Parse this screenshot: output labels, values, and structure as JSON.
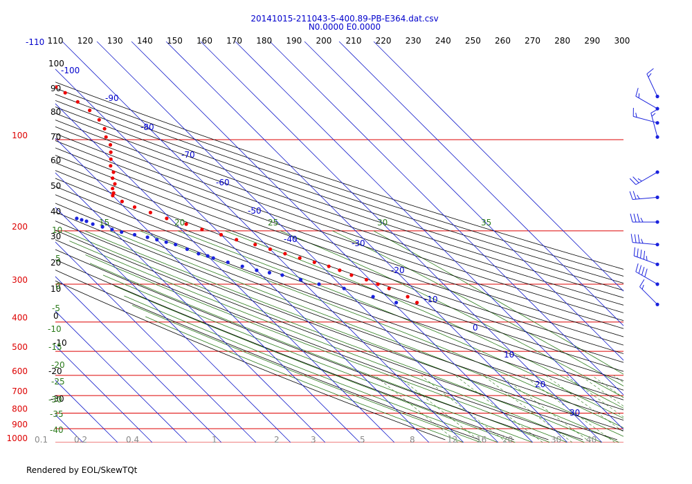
{
  "chart_data": {
    "type": "scatter",
    "title": "20141015-211043-5-400.89-PB-E364.dat.csv",
    "subtitle": "N0.0000 E0.0000",
    "top_axis_ticks": [
      110,
      120,
      130,
      140,
      150,
      160,
      170,
      180,
      190,
      200,
      210,
      220,
      230,
      240,
      250,
      260,
      270,
      280,
      290,
      300
    ],
    "top_axis_extra": "-110",
    "pressure_ticks": [
      100,
      200,
      300,
      400,
      500,
      600,
      700,
      800,
      900,
      1000
    ],
    "isotherm_labels": [
      10,
      0,
      -10,
      -20,
      -30,
      -40,
      -50,
      -60,
      -70,
      -80,
      -90,
      -100
    ],
    "dry_adiabat_labels": [
      100,
      90,
      80,
      70,
      60,
      50,
      40,
      30,
      20,
      10,
      0,
      -10,
      -20,
      -30
    ],
    "moist_adiabat_labels": [
      10,
      5,
      0,
      -5,
      -10,
      -15,
      -20,
      -25,
      -30,
      -35,
      -40,
      15,
      20,
      25,
      30,
      35
    ],
    "mixing_ratio_labels": [
      "0.1",
      "0.2",
      "0.4",
      "1",
      "2",
      "3",
      "5",
      "8",
      "12",
      "16",
      "20",
      "30",
      "40"
    ],
    "series": [
      {
        "color": "#ee0000",
        "x": [
          -13,
          -14,
          -17,
          -19,
          -21,
          -24,
          -26,
          -28,
          -31,
          -34,
          -37,
          -40,
          -43,
          -47,
          -50,
          -54,
          -57,
          -61,
          -64,
          -67,
          -69,
          -70,
          -69,
          -68,
          -66,
          -65,
          -63,
          -62,
          -60,
          -58,
          -56,
          -55,
          -53,
          -52,
          -52,
          -53,
          -54,
          -55
        ],
        "y": [
          345,
          330,
          310,
          300,
          290,
          280,
          270,
          262,
          254,
          246,
          238,
          230,
          222,
          214,
          206,
          198,
          190,
          182,
          174,
          167,
          160,
          153,
          150,
          145,
          140,
          134,
          128,
          122,
          116,
          110,
          104,
          98,
          92,
          86,
          80,
          75,
          70,
          67
        ]
      },
      {
        "color": "#1a22dd",
        "x": [
          -19,
          -24,
          -30,
          -36,
          -40,
          -44,
          -47,
          -50,
          -53,
          -56,
          -59,
          -60,
          -62,
          -64,
          -66,
          -68,
          -70,
          -72,
          -75,
          -78,
          -80,
          -82,
          -84,
          -85,
          -86,
          -87
        ],
        "y": [
          345,
          330,
          310,
          300,
          290,
          280,
          275,
          270,
          262,
          254,
          246,
          242,
          238,
          230,
          222,
          218,
          214,
          210,
          206,
          202,
          198,
          194,
          190,
          186,
          184,
          182
        ]
      }
    ],
    "wind_barbs": [
      {
        "pressure": 72,
        "speed": 15,
        "dir": 335
      },
      {
        "pressure": 79,
        "speed": 15,
        "dir": 300
      },
      {
        "pressure": 88,
        "speed": 15,
        "dir": 285
      },
      {
        "pressure": 98,
        "speed": 15,
        "dir": 345
      },
      {
        "pressure": 128,
        "speed": 25,
        "dir": 240
      },
      {
        "pressure": 155,
        "speed": 25,
        "dir": 265
      },
      {
        "pressure": 187,
        "speed": 35,
        "dir": 270
      },
      {
        "pressure": 222,
        "speed": 35,
        "dir": 275
      },
      {
        "pressure": 258,
        "speed": 45,
        "dir": 290
      },
      {
        "pressure": 300,
        "speed": 40,
        "dir": 300
      },
      {
        "pressure": 350,
        "speed": 15,
        "dir": 315
      }
    ],
    "xlim": [
      -110,
      40
    ],
    "ylim": [
      1000,
      65
    ],
    "log_y": true
  },
  "footer": {
    "credit": "Rendered by EOL/SkewTQt"
  }
}
